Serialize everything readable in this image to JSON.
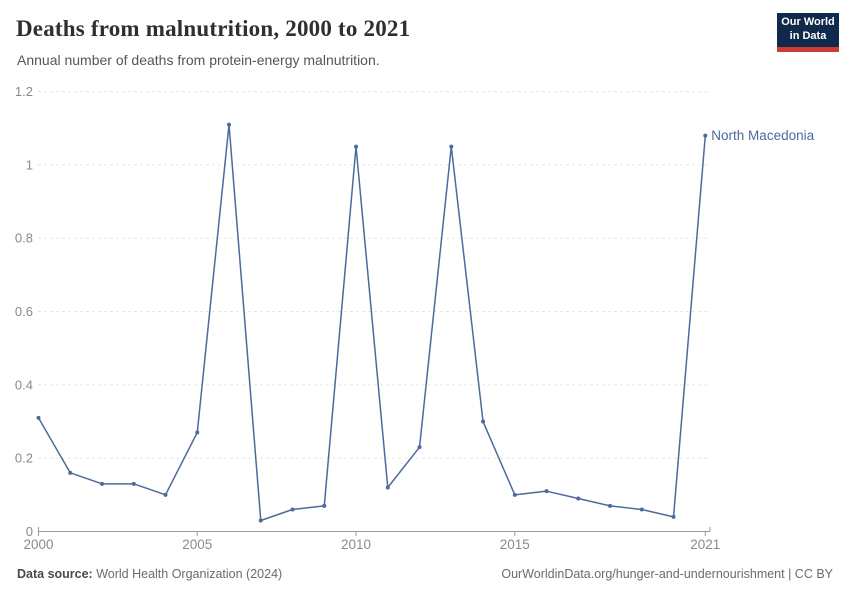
{
  "header": {
    "title": "Deaths from malnutrition, 2000 to 2021",
    "subtitle": "Annual number of deaths from protein-energy malnutrition.",
    "logo": {
      "line1": "Our World",
      "line2": "in Data"
    }
  },
  "chart_data": {
    "type": "line",
    "title": "Deaths from malnutrition, 2000 to 2021",
    "xlabel": "",
    "ylabel": "",
    "xlim": [
      2000,
      2021
    ],
    "ylim": [
      0,
      1.2
    ],
    "xticks": [
      2000,
      2005,
      2010,
      2015,
      2021
    ],
    "xtick_labels": [
      "2000",
      "2005",
      "2010",
      "2015",
      "2021"
    ],
    "yticks": [
      0,
      0.2,
      0.4,
      0.6,
      0.8,
      1,
      1.2
    ],
    "ytick_labels": [
      "0",
      "0.2",
      "0.4",
      "0.6",
      "0.8",
      "1",
      "1.2"
    ],
    "grid": "horizontal-dashed",
    "legend_position": "end-of-line-label",
    "series": [
      {
        "name": "North Macedonia",
        "color": "#4C6A9C",
        "x": [
          2000,
          2001,
          2002,
          2003,
          2004,
          2005,
          2006,
          2007,
          2008,
          2009,
          2010,
          2011,
          2012,
          2013,
          2014,
          2015,
          2016,
          2017,
          2018,
          2019,
          2020,
          2021
        ],
        "values": [
          0.31,
          0.16,
          0.13,
          0.13,
          0.1,
          0.27,
          1.11,
          0.03,
          0.06,
          0.07,
          1.05,
          0.12,
          0.23,
          1.05,
          0.3,
          0.1,
          0.11,
          0.09,
          0.07,
          0.06,
          0.04,
          1.08
        ]
      }
    ]
  },
  "footer": {
    "datasource_label": "Data source:",
    "datasource_value": " World Health Organization (2024)",
    "credit": "OurWorldinData.org/hunger-and-undernourishment | CC BY"
  },
  "colors": {
    "line": "#4C6A9C",
    "grid": "#dcdcdc",
    "axis": "#999999",
    "tick_label": "#8a8a8a",
    "title": "#2f2f2f",
    "logo_navy": "#102A4C",
    "logo_red": "#CF3B32"
  }
}
